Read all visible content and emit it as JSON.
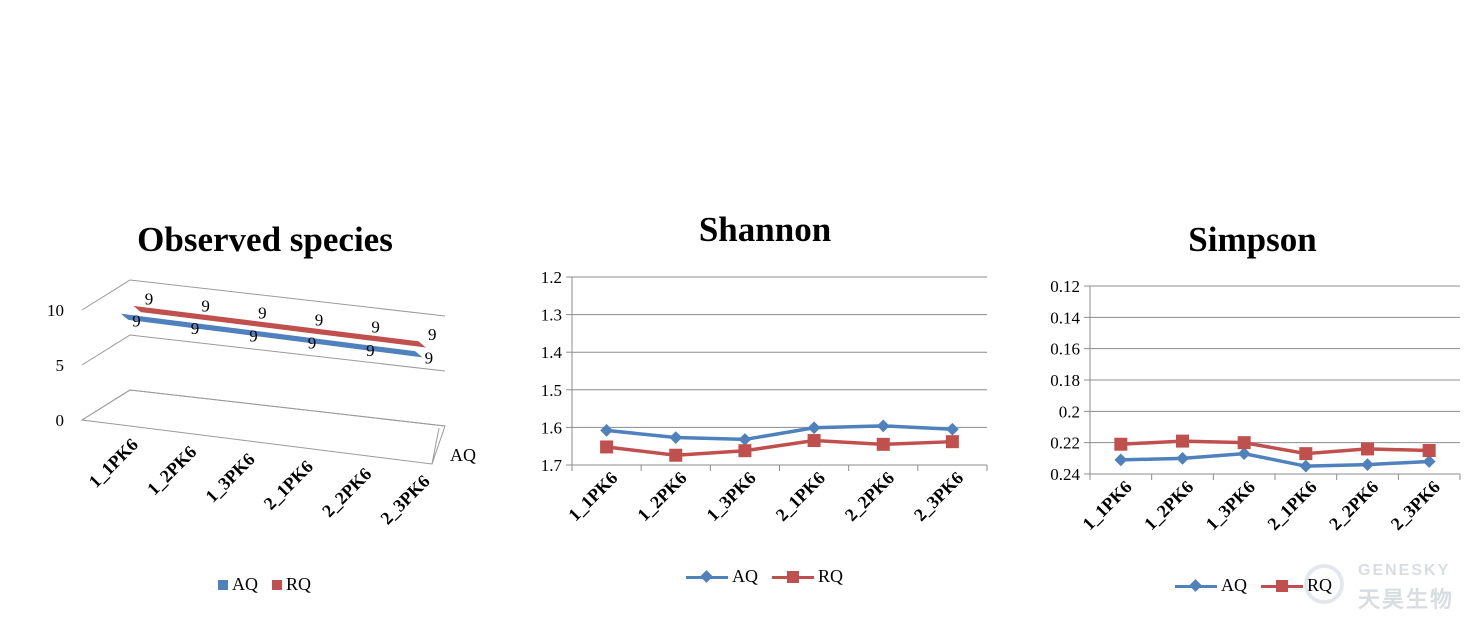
{
  "chart_data": [
    {
      "type": "bar",
      "title": "Observed species",
      "categories": [
        "1_1PK6",
        "1_2PK6",
        "1_3PK6",
        "2_1PK6",
        "2_2PK6",
        "2_3PK6"
      ],
      "series": [
        {
          "name": "AQ",
          "values": [
            9,
            9,
            9,
            9,
            9,
            9
          ],
          "color": "#4F81BD"
        },
        {
          "name": "RQ",
          "values": [
            9,
            9,
            9,
            9,
            9,
            9
          ],
          "color": "#C0504D"
        }
      ],
      "y_ticks": [
        "0",
        "5",
        "10"
      ],
      "ylim": [
        0,
        10
      ],
      "depth_axis_label": "AQ",
      "style": "3d-ribbon",
      "legend_position": "bottom"
    },
    {
      "type": "line",
      "title": "Shannon",
      "categories": [
        "1_1PK6",
        "1_2PK6",
        "1_3PK6",
        "2_1PK6",
        "2_2PK6",
        "2_3PK6"
      ],
      "series": [
        {
          "name": "AQ",
          "values": [
            1.608,
            1.627,
            1.632,
            1.601,
            1.596,
            1.605
          ],
          "color": "#4F81BD",
          "marker": "diamond"
        },
        {
          "name": "RQ",
          "values": [
            1.652,
            1.674,
            1.662,
            1.635,
            1.645,
            1.638
          ],
          "color": "#C0504D",
          "marker": "square"
        }
      ],
      "y_ticks": [
        "1.2",
        "1.3",
        "1.4",
        "1.5",
        "1.6",
        "1.7"
      ],
      "ylim": [
        1.2,
        1.7
      ],
      "grid": true,
      "legend_position": "bottom"
    },
    {
      "type": "line",
      "title": "Simpson",
      "categories": [
        "1_1PK6",
        "1_2PK6",
        "1_3PK6",
        "2_1PK6",
        "2_2PK6",
        "2_3PK6"
      ],
      "series": [
        {
          "name": "AQ",
          "values": [
            0.231,
            0.23,
            0.227,
            0.235,
            0.234,
            0.232
          ],
          "color": "#4F81BD",
          "marker": "diamond"
        },
        {
          "name": "RQ",
          "values": [
            0.221,
            0.219,
            0.22,
            0.227,
            0.224,
            0.225
          ],
          "color": "#C0504D",
          "marker": "square"
        }
      ],
      "y_ticks": [
        "0.12",
        "0.14",
        "0.16",
        "0.18",
        "0.2",
        "0.22",
        "0.24"
      ],
      "ylim": [
        0.12,
        0.24
      ],
      "grid": true,
      "legend_position": "bottom"
    }
  ],
  "watermark": {
    "brand": "GENESKY",
    "brand_cn": "天昊生物"
  }
}
